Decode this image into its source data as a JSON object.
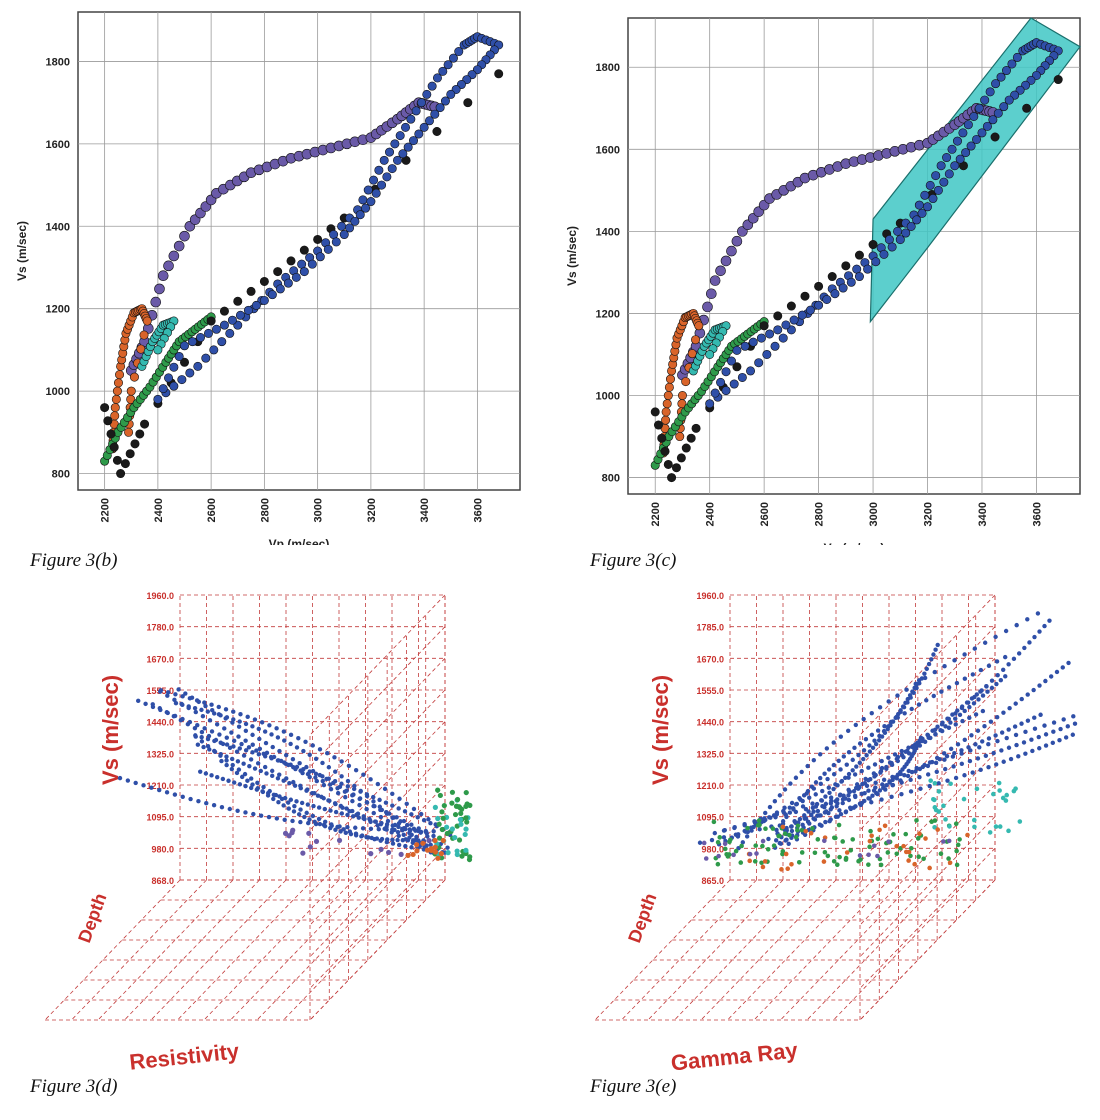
{
  "captions": {
    "b": "Figure 3(b)",
    "c": "Figure 3(c)",
    "d": "Figure 3(d)",
    "e": "Figure 3(e)"
  },
  "colors": {
    "blue": "#2f4fa8",
    "navy": "#1c2f78",
    "purple": "#6a5aa8",
    "orange": "#d9642a",
    "green": "#2e9a4a",
    "cyan": "#35b9b0",
    "black": "#1a1a1a",
    "highlight": "#3fc7c4",
    "grid3d": "#c23b3b",
    "label3d": "#c9302c"
  },
  "chart_data": [
    {
      "id": "figure-3b",
      "type": "scatter",
      "xlabel": "Vp (m/sec)",
      "ylabel": "Vs (m/sec)",
      "xlim": [
        2100,
        3760
      ],
      "ylim": [
        760,
        1920
      ],
      "xticks": [
        2200,
        2400,
        2600,
        2800,
        3000,
        3200,
        3400,
        3600
      ],
      "yticks": [
        800,
        1000,
        1200,
        1400,
        1600,
        1800
      ],
      "grid": true,
      "series": [
        {
          "color": "purple",
          "points": [
            [
              2300,
              1050
            ],
            [
              2350,
              1120
            ],
            [
              2420,
              1280
            ],
            [
              2520,
              1400
            ],
            [
              2620,
              1480
            ],
            [
              2750,
              1530
            ],
            [
              2900,
              1565
            ],
            [
              3050,
              1590
            ],
            [
              3200,
              1615
            ],
            [
              3300,
              1660
            ],
            [
              3380,
              1700
            ],
            [
              3440,
              1690
            ]
          ]
        },
        {
          "color": "orange",
          "points": [
            [
              2230,
              860
            ],
            [
              2240,
              960
            ],
            [
              2260,
              1060
            ],
            [
              2280,
              1140
            ],
            [
              2310,
              1190
            ],
            [
              2340,
              1200
            ],
            [
              2360,
              1170
            ],
            [
              2300,
              1000
            ],
            [
              2290,
              900
            ]
          ]
        },
        {
          "color": "green",
          "points": [
            [
              2200,
              830
            ],
            [
              2250,
              900
            ],
            [
              2310,
              960
            ],
            [
              2370,
              1010
            ],
            [
              2430,
              1070
            ],
            [
              2480,
              1120
            ],
            [
              2540,
              1150
            ],
            [
              2600,
              1180
            ]
          ]
        },
        {
          "color": "cyan",
          "points": [
            [
              2340,
              1060
            ],
            [
              2380,
              1120
            ],
            [
              2420,
              1160
            ],
            [
              2460,
              1170
            ],
            [
              2400,
              1100
            ]
          ]
        },
        {
          "color": "black",
          "points": [
            [
              2200,
              960
            ],
            [
              2260,
              800
            ],
            [
              2350,
              920
            ],
            [
              2600,
              1170
            ],
            [
              2850,
              1290
            ],
            [
              3100,
              1420
            ],
            [
              3680,
              1770
            ]
          ]
        },
        {
          "color": "blue",
          "points": [
            [
              2400,
              980
            ],
            [
              2550,
              1060
            ],
            [
              2700,
              1160
            ],
            [
              2850,
              1260
            ],
            [
              3000,
              1340
            ],
            [
              3150,
              1440
            ],
            [
              3250,
              1560
            ],
            [
              3350,
              1660
            ],
            [
              3450,
              1760
            ],
            [
              3550,
              1840
            ],
            [
              3600,
              1860
            ],
            [
              3680,
              1840
            ],
            [
              3600,
              1780
            ],
            [
              3500,
              1720
            ],
            [
              3400,
              1640
            ],
            [
              3300,
              1560
            ],
            [
              3200,
              1460
            ],
            [
              3100,
              1380
            ],
            [
              2950,
              1290
            ],
            [
              2800,
              1220
            ],
            [
              2650,
              1160
            ],
            [
              2500,
              1110
            ]
          ]
        }
      ]
    },
    {
      "id": "figure-3c",
      "type": "scatter",
      "xlabel": "Vp (m/sec)",
      "ylabel": "Vs (m/sec)",
      "xlim": [
        2100,
        3760
      ],
      "ylim": [
        760,
        1920
      ],
      "xticks": [
        2200,
        2400,
        2600,
        2800,
        3000,
        3200,
        3400,
        3600
      ],
      "yticks": [
        800,
        1000,
        1200,
        1400,
        1600,
        1800
      ],
      "grid": true,
      "highlight_polygon": [
        [
          2990,
          1180
        ],
        [
          3000,
          1430
        ],
        [
          3580,
          1920
        ],
        [
          3760,
          1850
        ],
        [
          3200,
          1360
        ]
      ],
      "series": [
        {
          "color": "purple",
          "points": [
            [
              2300,
              1050
            ],
            [
              2350,
              1120
            ],
            [
              2420,
              1280
            ],
            [
              2520,
              1400
            ],
            [
              2620,
              1480
            ],
            [
              2750,
              1530
            ],
            [
              2900,
              1565
            ],
            [
              3050,
              1590
            ],
            [
              3200,
              1615
            ],
            [
              3300,
              1660
            ],
            [
              3380,
              1700
            ],
            [
              3440,
              1690
            ]
          ]
        },
        {
          "color": "orange",
          "points": [
            [
              2230,
              860
            ],
            [
              2240,
              960
            ],
            [
              2260,
              1060
            ],
            [
              2280,
              1140
            ],
            [
              2310,
              1190
            ],
            [
              2340,
              1200
            ],
            [
              2360,
              1170
            ],
            [
              2300,
              1000
            ],
            [
              2290,
              900
            ]
          ]
        },
        {
          "color": "green",
          "points": [
            [
              2200,
              830
            ],
            [
              2250,
              900
            ],
            [
              2310,
              960
            ],
            [
              2370,
              1010
            ],
            [
              2430,
              1070
            ],
            [
              2480,
              1120
            ],
            [
              2540,
              1150
            ],
            [
              2600,
              1180
            ]
          ]
        },
        {
          "color": "cyan",
          "points": [
            [
              2340,
              1060
            ],
            [
              2380,
              1120
            ],
            [
              2420,
              1160
            ],
            [
              2460,
              1170
            ],
            [
              2400,
              1100
            ]
          ]
        },
        {
          "color": "black",
          "points": [
            [
              2200,
              960
            ],
            [
              2260,
              800
            ],
            [
              2350,
              920
            ],
            [
              2600,
              1170
            ],
            [
              2850,
              1290
            ],
            [
              3100,
              1420
            ],
            [
              3680,
              1770
            ]
          ]
        },
        {
          "color": "blue",
          "points": [
            [
              2400,
              980
            ],
            [
              2550,
              1060
            ],
            [
              2700,
              1160
            ],
            [
              2850,
              1260
            ],
            [
              3000,
              1340
            ],
            [
              3150,
              1440
            ],
            [
              3250,
              1560
            ],
            [
              3350,
              1660
            ],
            [
              3450,
              1760
            ],
            [
              3550,
              1840
            ],
            [
              3600,
              1860
            ],
            [
              3680,
              1840
            ],
            [
              3600,
              1780
            ],
            [
              3500,
              1720
            ],
            [
              3400,
              1640
            ],
            [
              3300,
              1560
            ],
            [
              3200,
              1460
            ],
            [
              3100,
              1380
            ],
            [
              2950,
              1290
            ],
            [
              2800,
              1220
            ],
            [
              2650,
              1160
            ],
            [
              2500,
              1110
            ]
          ]
        }
      ]
    },
    {
      "id": "figure-3d",
      "type": "scatter",
      "xlabel": "Resistivity",
      "ylabel": "Vs (m/sec)",
      "zlabel": "Depth",
      "yticks": [
        "1960.0",
        "1780.0",
        "1670.0",
        "1555.0",
        "1440.0",
        "1325.0",
        "1210.0",
        "1095.0",
        "980.0",
        "868.0"
      ]
    },
    {
      "id": "figure-3e",
      "type": "scatter",
      "xlabel": "Gamma Ray",
      "ylabel": "Vs (m/sec)",
      "zlabel": "Depth",
      "yticks": [
        "1960.0",
        "1785.0",
        "1670.0",
        "1555.0",
        "1440.0",
        "1325.0",
        "1210.0",
        "1095.0",
        "980.0",
        "865.0"
      ]
    }
  ]
}
